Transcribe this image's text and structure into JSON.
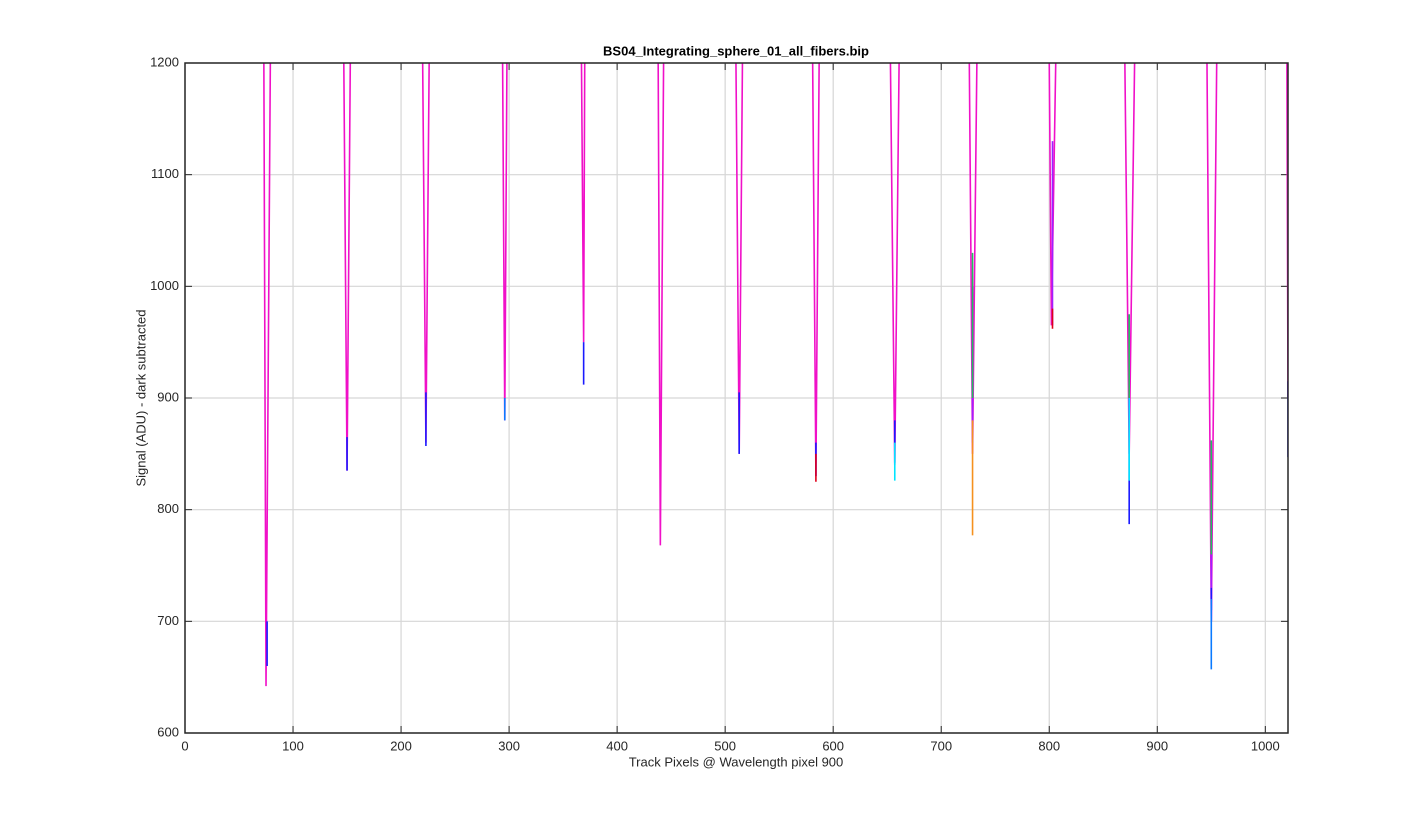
{
  "chart_data": {
    "type": "line",
    "title": "BS04_Integrating_sphere_01_all_fibers.bip",
    "x_label": "Track Pixels @ Wavelength pixel 900",
    "y_label": "Signal (ADU) - dark subtracted",
    "xlim": [
      0,
      1021
    ],
    "ylim": [
      600,
      1200
    ],
    "xticks": [
      0,
      100,
      200,
      300,
      400,
      500,
      600,
      700,
      800,
      900,
      1000
    ],
    "yticks": [
      600,
      700,
      800,
      900,
      1000,
      1100,
      1200
    ],
    "grid": true,
    "series": [
      {
        "color": "#f010c8",
        "x": [
          73,
          75,
          79,
          null,
          147,
          150,
          153,
          null,
          220,
          223,
          226,
          null,
          294,
          296,
          298,
          null,
          367,
          369,
          370,
          null,
          438,
          440,
          443,
          null,
          510,
          513,
          516,
          null,
          581,
          584,
          587,
          null,
          653,
          657,
          661,
          null,
          726,
          729,
          733,
          null,
          800,
          802,
          806,
          null,
          870,
          874,
          879,
          null,
          946,
          950,
          955,
          null,
          1020,
          1021
        ],
        "values": [
          1200,
          642,
          1200,
          null,
          1200,
          835,
          1200,
          null,
          1200,
          860,
          1200,
          null,
          1200,
          880,
          1200,
          null,
          1200,
          950,
          1200,
          null,
          1200,
          768,
          1200,
          null,
          1200,
          850,
          1200,
          null,
          1200,
          830,
          1200,
          null,
          1200,
          840,
          1200,
          null,
          1200,
          850,
          1200,
          null,
          1200,
          965,
          1200,
          null,
          1200,
          850,
          1200,
          null,
          1200,
          700,
          1200,
          null,
          1200,
          900
        ]
      },
      {
        "color": "#a020ff",
        "x": [
          803,
          803,
          null,
          950,
          950,
          null,
          729,
          729
        ],
        "values": [
          1130,
          965,
          null,
          810,
          700,
          null,
          1000,
          860
        ]
      },
      {
        "color": "#20c060",
        "x": [
          729,
          729,
          null,
          950,
          950,
          null,
          874,
          874
        ],
        "values": [
          1030,
          900,
          null,
          862,
          760,
          null,
          975,
          900
        ]
      },
      {
        "color": "#1a1aff",
        "x": [
          76,
          76,
          null,
          150,
          150,
          null,
          223,
          223,
          null,
          369,
          369,
          null,
          513,
          513,
          null,
          584,
          584,
          null,
          657,
          657,
          null,
          874,
          874,
          null,
          950,
          950,
          null,
          1021,
          1021
        ],
        "values": [
          700,
          660,
          null,
          865,
          835,
          null,
          905,
          857,
          null,
          950,
          912,
          null,
          905,
          850,
          null,
          860,
          830,
          null,
          880,
          842,
          null,
          900,
          787,
          null,
          730,
          710,
          null,
          915,
          847
        ]
      },
      {
        "color": "#0a7aff",
        "x": [
          950,
          950,
          null,
          296,
          296
        ],
        "values": [
          720,
          657,
          null,
          900,
          880
        ]
      },
      {
        "color": "#f5911e",
        "x": [
          729,
          729
        ],
        "values": [
          880,
          777
        ]
      },
      {
        "color": "#e0001a",
        "x": [
          584,
          584,
          null,
          803,
          803
        ],
        "values": [
          850,
          825,
          null,
          980,
          962
        ]
      },
      {
        "color": "#00e5ff",
        "x": [
          657,
          657,
          null,
          874,
          874
        ],
        "values": [
          860,
          826,
          null,
          900,
          826
        ]
      }
    ]
  }
}
